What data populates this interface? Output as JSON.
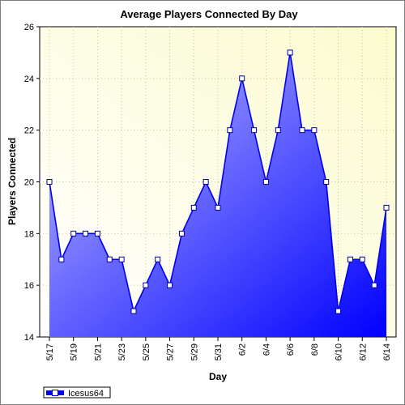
{
  "chart_data": {
    "type": "area",
    "title": "Average Players Connected By Day",
    "xlabel": "Day",
    "ylabel": "Players Connected",
    "ylim": [
      14,
      26
    ],
    "yticks": [
      14,
      16,
      18,
      20,
      22,
      24,
      26
    ],
    "grid": true,
    "legend": "bottom-left",
    "x": [
      "5/17",
      "5/18",
      "5/19",
      "5/20",
      "5/21",
      "5/22",
      "5/23",
      "5/24",
      "5/25",
      "5/26",
      "5/27",
      "5/28",
      "5/29",
      "5/30",
      "5/31",
      "6/1",
      "6/2",
      "6/3",
      "6/4",
      "6/5",
      "6/6",
      "6/7",
      "6/8",
      "6/9",
      "6/10",
      "6/11",
      "6/12",
      "6/13",
      "6/14"
    ],
    "xtick_labels": [
      "5/17",
      "5/19",
      "5/21",
      "5/23",
      "5/25",
      "5/27",
      "5/29",
      "5/31",
      "6/2",
      "6/4",
      "6/6",
      "6/8",
      "6/10",
      "6/12",
      "6/14"
    ],
    "series": [
      {
        "name": "Icesus64",
        "color": "#0000ee",
        "values": [
          20,
          17,
          18,
          18,
          18,
          17,
          17,
          15,
          16,
          17,
          16,
          18,
          19,
          20,
          19,
          22,
          24,
          22,
          20,
          22,
          25,
          22,
          22,
          20,
          15,
          17,
          17,
          16,
          19
        ]
      }
    ]
  }
}
